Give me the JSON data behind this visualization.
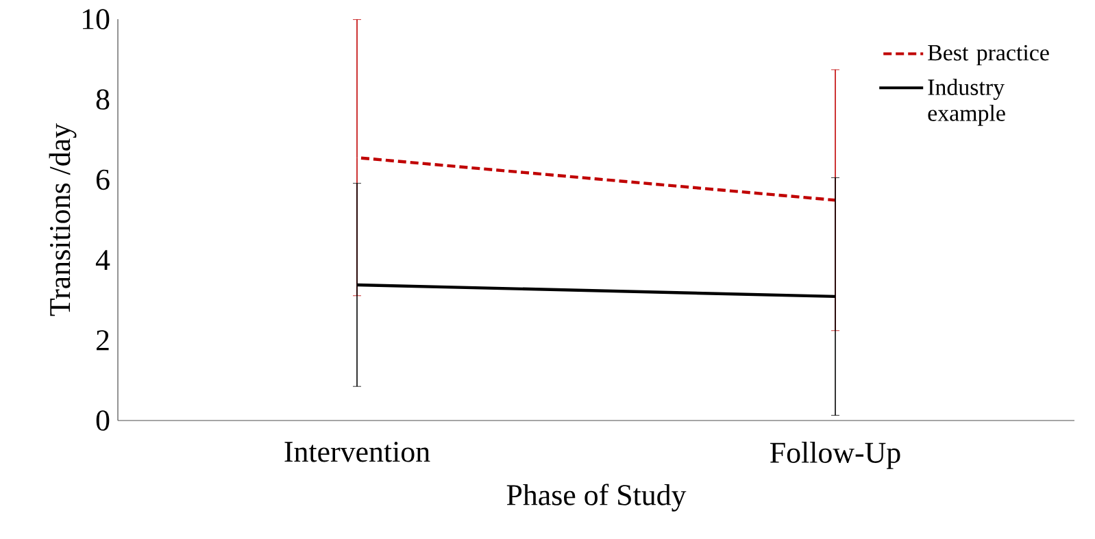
{
  "chart_data": {
    "type": "line",
    "xlabel": "Phase of Study",
    "ylabel": "Transitions /day",
    "categories": [
      "Intervention",
      "Follow-Up"
    ],
    "series": [
      {
        "name": "Best practice",
        "color": "#c00000",
        "line_style": "dashed",
        "values": [
          6.55,
          5.49
        ],
        "errors": [
          3.44,
          3.25
        ]
      },
      {
        "name": "Industry example",
        "color": "#000000",
        "line_style": "solid",
        "values": [
          3.38,
          3.09
        ],
        "errors": [
          2.53,
          2.96
        ]
      }
    ],
    "ylim": [
      0,
      10
    ],
    "yticks": [
      0,
      2,
      4,
      6,
      8,
      10
    ],
    "legend": "top right",
    "marker": "none",
    "grid": false
  }
}
